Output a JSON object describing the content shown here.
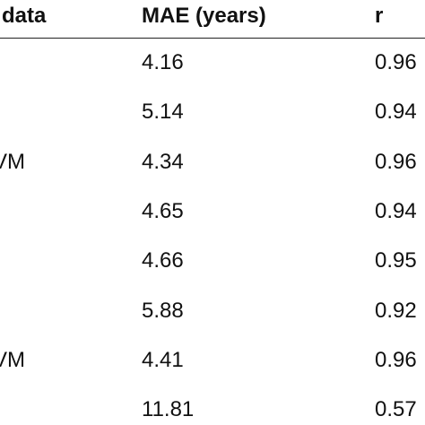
{
  "table": {
    "header": [
      "data",
      "MAE (years)",
      "r"
    ],
    "rows": [
      {
        "mae": "4.16",
        "r": "0.96"
      },
      {
        "mae": "5.14",
        "r": "0.94"
      },
      {
        "data": "VM",
        "mae": "4.34",
        "r": "0.96"
      },
      {
        "mae": "4.65",
        "r": "0.94"
      },
      {
        "mae": "4.66",
        "r": "0.95"
      },
      {
        "mae": "5.88",
        "r": "0.92"
      },
      {
        "data": "VM",
        "mae": "4.41",
        "r": "0.96"
      },
      {
        "mae": "11.81",
        "r": "0.57"
      }
    ]
  }
}
